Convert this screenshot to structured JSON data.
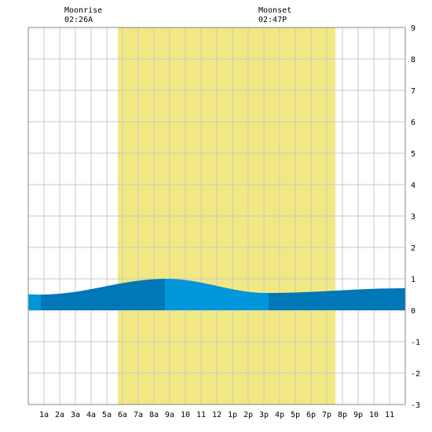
{
  "moon": {
    "rise_label": "Moonrise",
    "rise_time": "02:26A",
    "set_label": "Moonset",
    "set_time": "02:47P"
  },
  "chart_data": {
    "type": "area",
    "title": "",
    "xlabel": "",
    "ylabel": "",
    "x_tick_labels": [
      "1a",
      "2a",
      "3a",
      "4a",
      "5a",
      "6a",
      "7a",
      "8a",
      "9a",
      "10",
      "11",
      "12",
      "1p",
      "2p",
      "3p",
      "4p",
      "5p",
      "6p",
      "7p",
      "8p",
      "9p",
      "10",
      "11"
    ],
    "xlim_hours": [
      0,
      24
    ],
    "ylim": [
      -3,
      9
    ],
    "y_ticks": [
      -3,
      -2,
      -1,
      0,
      1,
      2,
      3,
      4,
      5,
      6,
      7,
      8,
      9
    ],
    "grid": true,
    "daylight_hours": [
      5.7,
      19.55
    ],
    "tide_extremes": [
      {
        "time_hours": 0.8,
        "height": 0.5,
        "kind": "low"
      },
      {
        "time_hours": 8.8,
        "height": 1.0,
        "kind": "high"
      },
      {
        "time_hours": 15.2,
        "height": 0.55,
        "kind": "low"
      },
      {
        "time_hours": 24.0,
        "height": 0.7,
        "kind": "high"
      }
    ],
    "tide_segment_boundaries_hours": [
      0.8,
      8.7,
      15.3
    ],
    "colors": {
      "daylight": "#f2e882",
      "tide_dark": "#0077b6",
      "tide_light": "#0096d9",
      "grid": "#c8c8c8",
      "border": "#888888"
    }
  }
}
